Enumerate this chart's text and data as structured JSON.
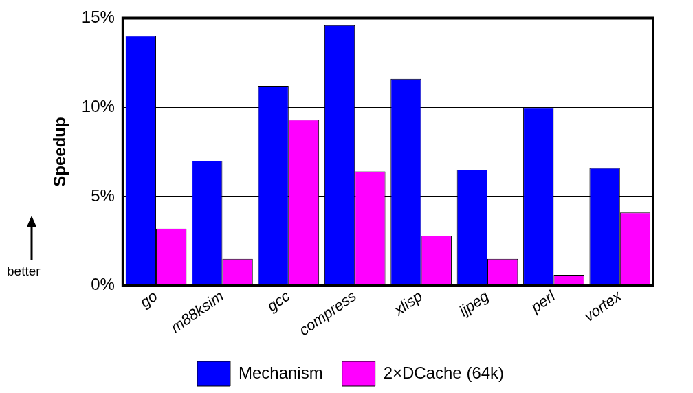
{
  "chart_data": {
    "type": "bar",
    "ylabel": "Speedup",
    "categories": [
      "go",
      "m88ksim",
      "gcc",
      "compress",
      "xlisp",
      "ijpeg",
      "perl",
      "vortex"
    ],
    "series": [
      {
        "name": "Mechanism",
        "color": "#0000ff",
        "values": [
          14.0,
          7.0,
          11.2,
          14.6,
          11.6,
          6.5,
          10.0,
          6.6
        ]
      },
      {
        "name": "2×DCache (64k)",
        "color": "#ff00ff",
        "values": [
          3.2,
          1.5,
          9.3,
          6.4,
          2.8,
          1.5,
          0.6,
          4.1
        ]
      }
    ],
    "ylim": [
      0,
      15
    ],
    "yticks": [
      {
        "value": 0,
        "label": "0%"
      },
      {
        "value": 5,
        "label": "5%"
      },
      {
        "value": 10,
        "label": "10%"
      },
      {
        "value": 15,
        "label": "15%"
      }
    ],
    "grid": "y",
    "legend": "bottom",
    "annotations": [
      "better"
    ]
  }
}
